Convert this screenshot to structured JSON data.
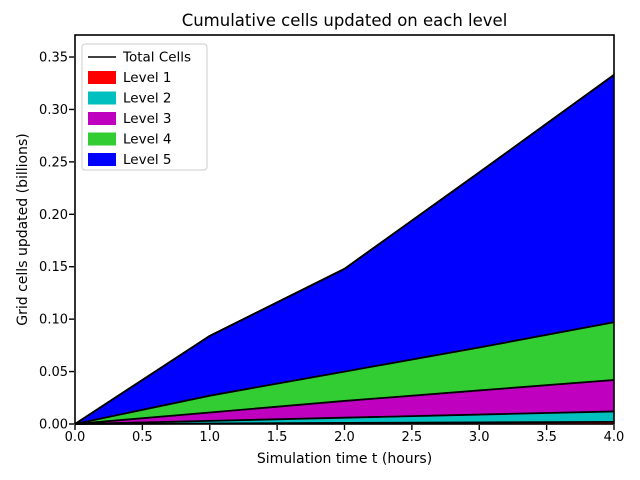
{
  "chart_data": {
    "type": "area",
    "stacked": true,
    "title": "Cumulative cells updated on each level",
    "xlabel": "Simulation time t (hours)",
    "ylabel": "Grid cells updated (billions)",
    "x": [
      0,
      1,
      2,
      3,
      4
    ],
    "series": [
      {
        "name": "Level 1",
        "color": "#ff0000",
        "values": [
          0,
          0.0005,
          0.001,
          0.0015,
          0.002
        ]
      },
      {
        "name": "Level 2",
        "color": "#00bfbf",
        "values": [
          0,
          0.0025,
          0.005,
          0.0075,
          0.01
        ]
      },
      {
        "name": "Level 3",
        "color": "#bf00bf",
        "values": [
          0,
          0.008,
          0.016,
          0.023,
          0.03
        ]
      },
      {
        "name": "Level 4",
        "color": "#32cd32",
        "values": [
          0,
          0.016,
          0.028,
          0.041,
          0.055
        ]
      },
      {
        "name": "Level 5",
        "color": "#0000ff",
        "values": [
          0,
          0.057,
          0.098,
          0.167,
          0.236
        ]
      }
    ],
    "total_line": {
      "name": "Total Cells",
      "color": "#000000",
      "values": [
        0,
        0.084,
        0.148,
        0.24,
        0.333
      ]
    },
    "xlim": [
      0,
      4
    ],
    "ylim": [
      0,
      0.371
    ],
    "xticks": [
      "0.0",
      "0.5",
      "1.0",
      "1.5",
      "2.0",
      "2.5",
      "3.0",
      "3.5",
      "4.0"
    ],
    "yticks": [
      "0.00",
      "0.05",
      "0.10",
      "0.15",
      "0.20",
      "0.25",
      "0.30",
      "0.35"
    ],
    "grid": false,
    "legend": {
      "position": "upper left",
      "background": "#ffffff",
      "border_color": "#cccccc",
      "entries": [
        {
          "label": "Total Cells",
          "type": "line",
          "color": "#000000"
        },
        {
          "label": "Level 1",
          "type": "patch",
          "color": "#ff0000"
        },
        {
          "label": "Level 2",
          "type": "patch",
          "color": "#00bfbf"
        },
        {
          "label": "Level 3",
          "type": "patch",
          "color": "#bf00bf"
        },
        {
          "label": "Level 4",
          "type": "patch",
          "color": "#32cd32"
        },
        {
          "label": "Level 5",
          "type": "patch",
          "color": "#0000ff"
        }
      ]
    }
  }
}
